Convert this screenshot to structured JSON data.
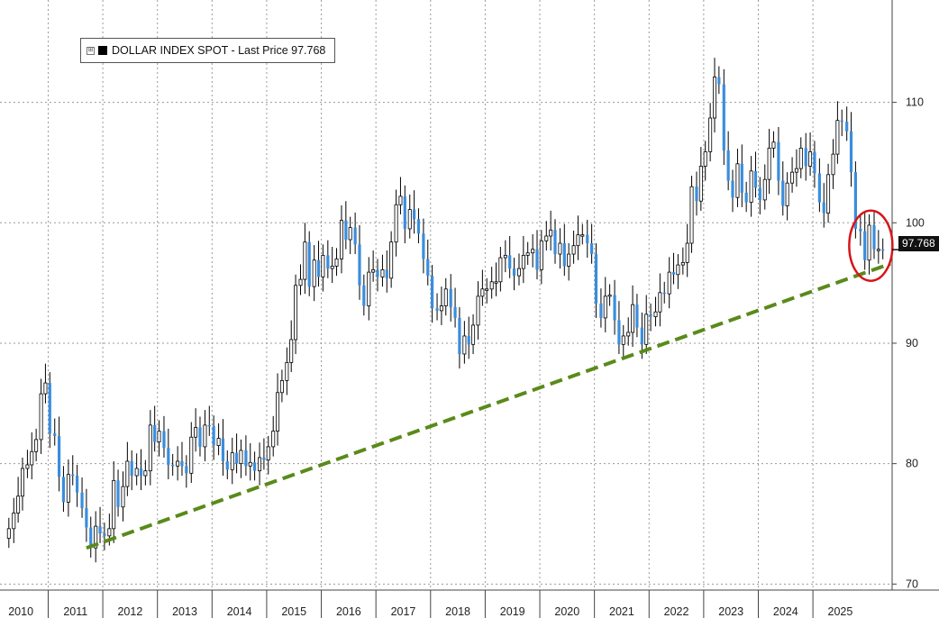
{
  "legend": {
    "expand_symbol": "⊞",
    "label": "DOLLAR INDEX SPOT - Last Price 97.768"
  },
  "last_price_tag": "97.768",
  "chart_data": {
    "type": "candlestick",
    "title": "",
    "series_name": "DOLLAR INDEX SPOT",
    "last_price": 97.768,
    "x_range": [
      2009.75,
      2025.95
    ],
    "ylim": [
      69.5,
      118.5
    ],
    "y_ticks": [
      70,
      80,
      90,
      100,
      110
    ],
    "x_ticks": [
      "2010",
      "2011",
      "2012",
      "2013",
      "2014",
      "2015",
      "2016",
      "2017",
      "2018",
      "2019",
      "2020",
      "2021",
      "2022",
      "2023",
      "2024",
      "2025"
    ],
    "grid": true,
    "up_color": "#000000",
    "down_color": "#3a8dde",
    "closes": [
      [
        2009.78,
        74.6
      ],
      [
        2009.87,
        75.9
      ],
      [
        2009.95,
        77.3
      ],
      [
        2010.03,
        79.6
      ],
      [
        2010.12,
        79.9
      ],
      [
        2010.2,
        81.0
      ],
      [
        2010.28,
        82.0
      ],
      [
        2010.37,
        85.8
      ],
      [
        2010.45,
        86.7
      ],
      [
        2010.53,
        82.5
      ],
      [
        2010.62,
        82.3
      ],
      [
        2010.7,
        78.9
      ],
      [
        2010.78,
        76.8
      ],
      [
        2010.87,
        79.1
      ],
      [
        2010.95,
        79.0
      ],
      [
        2011.03,
        77.6
      ],
      [
        2011.12,
        76.3
      ],
      [
        2011.2,
        74.7
      ],
      [
        2011.28,
        73.0
      ],
      [
        2011.37,
        74.8
      ],
      [
        2011.45,
        74.2
      ],
      [
        2011.53,
        74.0
      ],
      [
        2011.62,
        74.6
      ],
      [
        2011.7,
        78.6
      ],
      [
        2011.78,
        76.4
      ],
      [
        2011.87,
        78.1
      ],
      [
        2011.95,
        80.2
      ],
      [
        2012.03,
        79.0
      ],
      [
        2012.12,
        79.6
      ],
      [
        2012.2,
        79.0
      ],
      [
        2012.28,
        79.4
      ],
      [
        2012.37,
        83.2
      ],
      [
        2012.45,
        81.8
      ],
      [
        2012.53,
        82.7
      ],
      [
        2012.62,
        81.3
      ],
      [
        2012.7,
        79.9
      ],
      [
        2012.78,
        79.8
      ],
      [
        2012.87,
        80.2
      ],
      [
        2012.95,
        79.8
      ],
      [
        2013.03,
        79.2
      ],
      [
        2013.12,
        82.2
      ],
      [
        2013.2,
        83.0
      ],
      [
        2013.28,
        81.4
      ],
      [
        2013.37,
        83.2
      ],
      [
        2013.45,
        83.1
      ],
      [
        2013.53,
        81.5
      ],
      [
        2013.62,
        82.1
      ],
      [
        2013.7,
        80.2
      ],
      [
        2013.78,
        79.5
      ],
      [
        2013.87,
        80.9
      ],
      [
        2013.95,
        80.0
      ],
      [
        2014.03,
        81.1
      ],
      [
        2014.12,
        79.8
      ],
      [
        2014.2,
        80.1
      ],
      [
        2014.28,
        79.4
      ],
      [
        2014.37,
        80.5
      ],
      [
        2014.45,
        80.3
      ],
      [
        2014.53,
        81.4
      ],
      [
        2014.62,
        82.7
      ],
      [
        2014.7,
        85.9
      ],
      [
        2014.78,
        86.9
      ],
      [
        2014.87,
        88.4
      ],
      [
        2014.95,
        90.3
      ],
      [
        2015.03,
        94.8
      ],
      [
        2015.12,
        95.3
      ],
      [
        2015.2,
        98.4
      ],
      [
        2015.28,
        94.7
      ],
      [
        2015.37,
        96.9
      ],
      [
        2015.45,
        95.5
      ],
      [
        2015.53,
        97.3
      ],
      [
        2015.62,
        96.2
      ],
      [
        2015.7,
        96.4
      ],
      [
        2015.78,
        97.0
      ],
      [
        2015.87,
        100.2
      ],
      [
        2015.95,
        98.6
      ],
      [
        2016.03,
        99.6
      ],
      [
        2016.12,
        98.2
      ],
      [
        2016.2,
        94.8
      ],
      [
        2016.28,
        93.1
      ],
      [
        2016.37,
        95.9
      ],
      [
        2016.45,
        96.1
      ],
      [
        2016.53,
        95.5
      ],
      [
        2016.62,
        96.1
      ],
      [
        2016.7,
        95.4
      ],
      [
        2016.78,
        98.4
      ],
      [
        2016.87,
        101.5
      ],
      [
        2016.95,
        102.2
      ],
      [
        2017.03,
        99.5
      ],
      [
        2017.12,
        101.1
      ],
      [
        2017.2,
        100.3
      ],
      [
        2017.28,
        99.1
      ],
      [
        2017.37,
        97.0
      ],
      [
        2017.45,
        95.6
      ],
      [
        2017.53,
        92.9
      ],
      [
        2017.62,
        92.7
      ],
      [
        2017.7,
        93.1
      ],
      [
        2017.78,
        94.5
      ],
      [
        2017.87,
        93.0
      ],
      [
        2017.95,
        92.1
      ],
      [
        2018.03,
        89.1
      ],
      [
        2018.12,
        90.6
      ],
      [
        2018.2,
        89.9
      ],
      [
        2018.28,
        91.5
      ],
      [
        2018.37,
        93.9
      ],
      [
        2018.45,
        94.5
      ],
      [
        2018.53,
        94.5
      ],
      [
        2018.62,
        95.1
      ],
      [
        2018.7,
        95.1
      ],
      [
        2018.78,
        97.1
      ],
      [
        2018.87,
        97.3
      ],
      [
        2018.95,
        96.2
      ],
      [
        2019.03,
        95.6
      ],
      [
        2019.12,
        96.2
      ],
      [
        2019.2,
        97.3
      ],
      [
        2019.28,
        97.5
      ],
      [
        2019.37,
        97.8
      ],
      [
        2019.45,
        96.1
      ],
      [
        2019.53,
        98.5
      ],
      [
        2019.62,
        98.9
      ],
      [
        2019.7,
        99.4
      ],
      [
        2019.78,
        97.4
      ],
      [
        2019.87,
        98.3
      ],
      [
        2019.95,
        96.4
      ],
      [
        2020.03,
        97.4
      ],
      [
        2020.12,
        98.1
      ],
      [
        2020.2,
        99.0
      ],
      [
        2020.28,
        99.0
      ],
      [
        2020.37,
        98.3
      ],
      [
        2020.45,
        97.4
      ],
      [
        2020.53,
        93.3
      ],
      [
        2020.62,
        92.1
      ],
      [
        2020.7,
        93.9
      ],
      [
        2020.78,
        94.0
      ],
      [
        2020.87,
        91.9
      ],
      [
        2020.95,
        89.9
      ],
      [
        2021.03,
        90.6
      ],
      [
        2021.12,
        90.9
      ],
      [
        2021.2,
        93.2
      ],
      [
        2021.28,
        91.3
      ],
      [
        2021.37,
        89.9
      ],
      [
        2021.45,
        92.4
      ],
      [
        2021.53,
        92.2
      ],
      [
        2021.62,
        92.6
      ],
      [
        2021.7,
        94.2
      ],
      [
        2021.78,
        94.1
      ],
      [
        2021.87,
        95.9
      ],
      [
        2021.95,
        95.7
      ],
      [
        2022.03,
        96.5
      ],
      [
        2022.12,
        96.7
      ],
      [
        2022.2,
        98.3
      ],
      [
        2022.28,
        103.0
      ],
      [
        2022.37,
        101.8
      ],
      [
        2022.45,
        104.7
      ],
      [
        2022.53,
        105.9
      ],
      [
        2022.62,
        108.7
      ],
      [
        2022.7,
        112.1
      ],
      [
        2022.78,
        111.5
      ],
      [
        2022.87,
        106.0
      ],
      [
        2022.95,
        103.5
      ],
      [
        2023.03,
        102.1
      ],
      [
        2023.12,
        104.9
      ],
      [
        2023.2,
        102.5
      ],
      [
        2023.28,
        101.7
      ],
      [
        2023.37,
        104.3
      ],
      [
        2023.45,
        102.9
      ],
      [
        2023.53,
        101.9
      ],
      [
        2023.62,
        103.6
      ],
      [
        2023.7,
        106.2
      ],
      [
        2023.78,
        106.7
      ],
      [
        2023.87,
        103.5
      ],
      [
        2023.95,
        101.4
      ],
      [
        2024.03,
        103.3
      ],
      [
        2024.12,
        104.2
      ],
      [
        2024.2,
        104.5
      ],
      [
        2024.28,
        106.2
      ],
      [
        2024.37,
        104.7
      ],
      [
        2024.45,
        105.9
      ],
      [
        2024.53,
        104.1
      ],
      [
        2024.62,
        101.7
      ],
      [
        2024.7,
        100.8
      ],
      [
        2024.78,
        104.0
      ],
      [
        2024.87,
        105.7
      ],
      [
        2024.95,
        108.5
      ],
      [
        2025.03,
        108.4
      ],
      [
        2025.12,
        107.6
      ],
      [
        2025.2,
        104.2
      ],
      [
        2025.28,
        99.5
      ],
      [
        2025.37,
        99.3
      ],
      [
        2025.45,
        96.9
      ],
      [
        2025.53,
        99.8
      ],
      [
        2025.62,
        97.8
      ],
      [
        2025.7,
        97.8
      ],
      [
        2025.78,
        97.768
      ]
    ],
    "trendline": {
      "from": [
        2011.2,
        73.0
      ],
      "to": [
        2025.92,
        96.6
      ],
      "style": "dashed",
      "color": "#5a8a1a"
    },
    "annotation": {
      "type": "circle",
      "center": [
        2025.56,
        98.1
      ],
      "color": "#d7141a"
    }
  }
}
